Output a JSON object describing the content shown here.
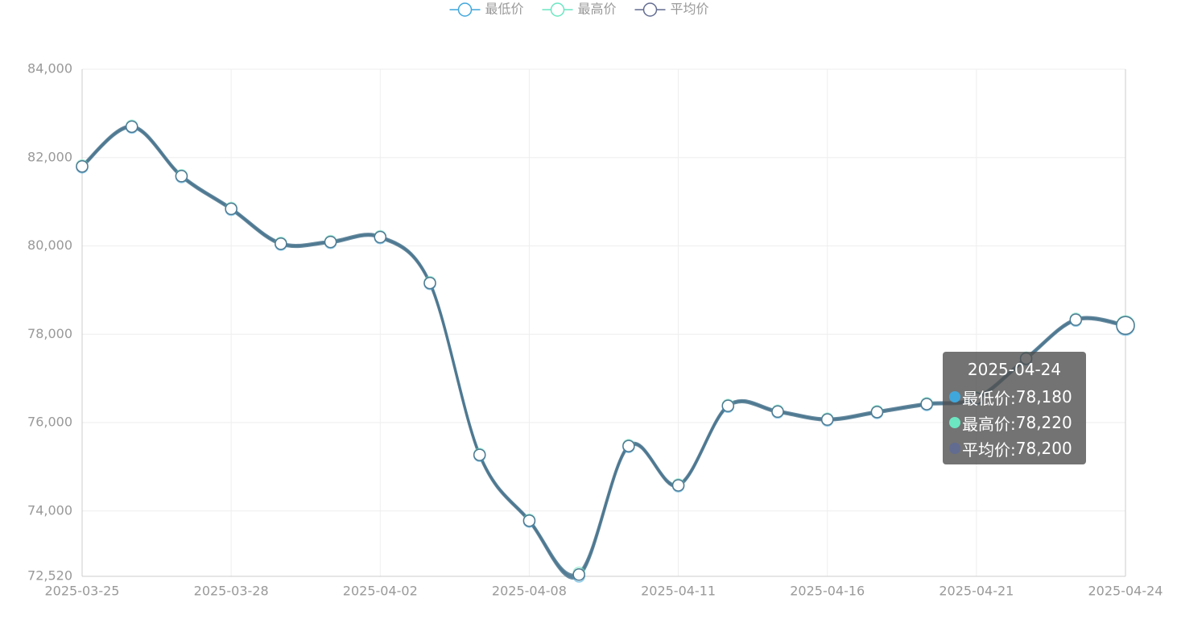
{
  "chart_data": {
    "type": "line",
    "categories": [
      "2025-03-25",
      null,
      null,
      "2025-03-28",
      null,
      null,
      "2025-04-02",
      null,
      null,
      "2025-04-08",
      null,
      null,
      "2025-04-11",
      null,
      null,
      "2025-04-16",
      null,
      null,
      "2025-04-21",
      null,
      null,
      "2025-04-24"
    ],
    "series": [
      {
        "name": "最低价",
        "color": "#3fa7dc",
        "values": [
          81780,
          82680,
          81560,
          80820,
          80030,
          80070,
          80180,
          79140,
          75250,
          73760,
          72520,
          75450,
          74560,
          76360,
          76230,
          76050,
          76220,
          76400,
          76530,
          77430,
          78310,
          78180
        ]
      },
      {
        "name": "最高价",
        "color": "#6be6c1",
        "values": [
          81820,
          82720,
          81600,
          80860,
          80070,
          80110,
          80220,
          79180,
          75290,
          73800,
          72600,
          75490,
          74600,
          76400,
          76270,
          76090,
          76260,
          76440,
          76570,
          77470,
          78350,
          78220
        ]
      },
      {
        "name": "平均价",
        "color": "#626c91",
        "values": [
          81800,
          82700,
          81580,
          80840,
          80050,
          80090,
          80200,
          79160,
          75270,
          73780,
          72560,
          75470,
          74580,
          76380,
          76250,
          76070,
          76240,
          76420,
          76550,
          77450,
          78330,
          78200
        ]
      }
    ],
    "tooltip_labels": [
      "78,180",
      "78,220",
      "78,200"
    ],
    "ylim": [
      72520,
      84000
    ],
    "yticks": [
      {
        "value": 72520,
        "label": "72,520"
      },
      {
        "value": 74000,
        "label": "74,000"
      },
      {
        "value": 76000,
        "label": "76,000"
      },
      {
        "value": 78000,
        "label": "78,000"
      },
      {
        "value": 80000,
        "label": "80,000"
      },
      {
        "value": 82000,
        "label": "82,000"
      },
      {
        "value": 84000,
        "label": "84,000"
      }
    ],
    "grid": true,
    "smooth": true
  }
}
